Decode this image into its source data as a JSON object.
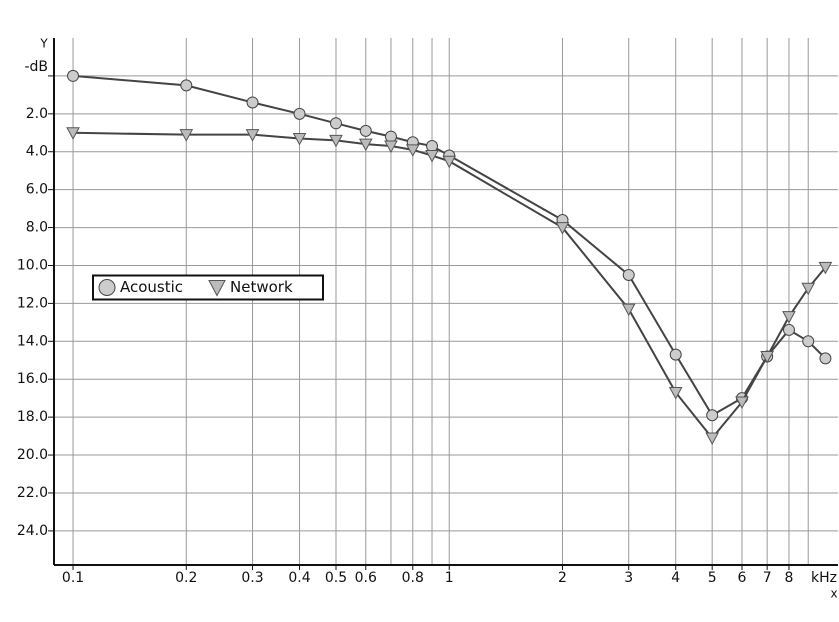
{
  "chart_data": {
    "type": "line",
    "x_label": "x",
    "x_unit": "kHz",
    "y_label": "Y",
    "x": [
      0.1,
      0.2,
      0.3,
      0.4,
      0.5,
      0.6,
      0.7,
      0.8,
      0.9,
      1,
      2,
      3,
      4,
      5,
      6,
      7,
      8,
      9,
      10
    ],
    "series": [
      {
        "name": "Acoustic",
        "color": "#444444",
        "marker": "circle",
        "values": [
          0.0,
          0.5,
          1.4,
          2.0,
          2.5,
          2.9,
          3.2,
          3.5,
          3.7,
          4.2,
          7.6,
          10.5,
          14.7,
          17.9,
          17.0,
          14.8,
          13.4,
          14.0,
          14.9
        ]
      },
      {
        "name": "Network",
        "color": "#444444",
        "marker": "triangle",
        "values": [
          3.0,
          3.1,
          3.1,
          3.3,
          3.4,
          3.6,
          3.7,
          3.9,
          4.2,
          4.5,
          8.0,
          12.3,
          16.7,
          19.1,
          17.2,
          14.8,
          12.7,
          11.2,
          10.1
        ]
      }
    ],
    "xscale": "log",
    "xlim": [
      0.089,
      10.8
    ],
    "xticks": [
      0.1,
      0.2,
      0.3,
      0.4,
      0.5,
      0.6,
      0.8,
      1,
      2,
      3,
      4,
      5,
      6,
      7,
      8
    ],
    "minor_xticks": [
      0.7,
      0.9,
      9
    ],
    "ylim": [
      -2,
      25.8
    ],
    "y_inverted": true,
    "yticks": [
      {
        "value": 0,
        "label": "-dB"
      },
      {
        "value": 2,
        "label": "2.0"
      },
      {
        "value": 4,
        "label": "4.0"
      },
      {
        "value": 6,
        "label": "6.0"
      },
      {
        "value": 8,
        "label": "8.0"
      },
      {
        "value": 10,
        "label": "10.0"
      },
      {
        "value": 12,
        "label": "12.0"
      },
      {
        "value": 14,
        "label": "14.0"
      },
      {
        "value": 16,
        "label": "16.0"
      },
      {
        "value": 18,
        "label": "18.0"
      },
      {
        "value": 20,
        "label": "20.0"
      },
      {
        "value": 22,
        "label": "22.0"
      },
      {
        "value": 24,
        "label": "24.0"
      }
    ],
    "grid": true,
    "legend": "left"
  }
}
